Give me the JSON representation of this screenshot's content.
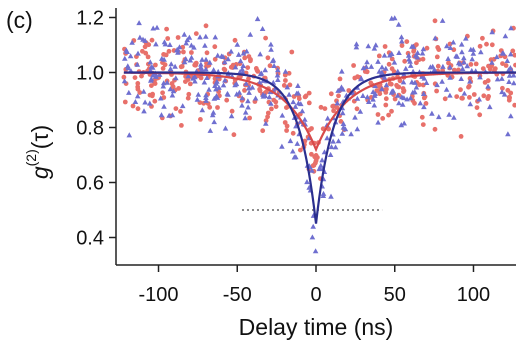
{
  "chart_data": {
    "type": "scatter",
    "panel_label": "(c)",
    "xlabel": "Delay time (ns)",
    "ylabel": "g(2)(τ)",
    "ylabel_parts": {
      "base": "g",
      "superscript": "(2)",
      "argument": "(τ)"
    },
    "xlim": [
      -127,
      127
    ],
    "ylim": [
      0.3,
      1.22
    ],
    "xticks": [
      -100,
      -50,
      0,
      50,
      100
    ],
    "xtick_labels": [
      "-100",
      "-50",
      "0",
      "50",
      "100"
    ],
    "yticks": [
      0.4,
      0.6,
      0.8,
      1.0,
      1.2
    ],
    "ytick_labels": [
      "0.4",
      "0.6",
      "0.8",
      "1.0",
      "1.2"
    ],
    "grid": false,
    "reference_line": {
      "y": 0.5,
      "x_range": [
        -47,
        42
      ],
      "style": "dotted",
      "color": "#8a8a8a"
    },
    "series": [
      {
        "marker": "circle",
        "color": "#e8706a",
        "fit_color": "#d84a4a",
        "fit": {
          "baseline": 1.0,
          "dip_min": 0.72,
          "width_ns": 20,
          "x_range": [
            -122,
            127
          ]
        },
        "scatter_noise": 0.075
      },
      {
        "marker": "triangle",
        "color": "#6f6fd0",
        "fit_color": "#2b2f8f",
        "fit": {
          "baseline": 1.0,
          "dip_min": 0.45,
          "width_ns": 11,
          "x_range": [
            -122,
            127
          ]
        },
        "scatter_noise": 0.085
      }
    ]
  }
}
